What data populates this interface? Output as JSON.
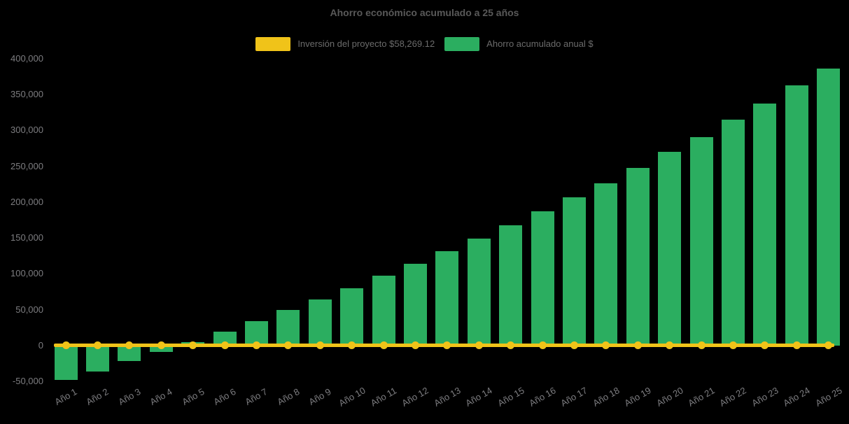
{
  "title": "Ahorro económico acumulado a 25 años",
  "legend": {
    "items": [
      {
        "label": "Inversión del proyecto $58,269.12",
        "swatch_color": "#F0C319",
        "series": "investment-line"
      },
      {
        "label": "Ahorro acumulado anual $",
        "swatch_color": "#2BAE60",
        "series": "savings-bars"
      }
    ]
  },
  "chart_data": {
    "type": "bar",
    "title": "Ahorro económico acumulado a 25 años",
    "categories": [
      "Año 1",
      "Año 2",
      "Año 3",
      "Año 4",
      "Año 5",
      "Año 6",
      "Año 7",
      "Año 8",
      "Año 9",
      "Año 10",
      "Año 11",
      "Año 12",
      "Año 13",
      "Año 14",
      "Año 15",
      "Año 16",
      "Año 17",
      "Año 18",
      "Año 19",
      "Año 20",
      "Año 21",
      "Año 22",
      "Año 23",
      "Año 24",
      "Año 25"
    ],
    "series": [
      {
        "name": "Ahorro acumulado anual $",
        "type": "bar",
        "color": "#2BAE60",
        "values": [
          -48500,
          -36000,
          -22000,
          -9500,
          5000,
          19500,
          33500,
          49500,
          64500,
          80000,
          97500,
          114000,
          131500,
          149500,
          168000,
          187000,
          206500,
          226500,
          248000,
          270000,
          291000,
          315000,
          337500,
          362500,
          386500
        ]
      },
      {
        "name": "Inversión del proyecto $58,269.12",
        "type": "line",
        "color": "#F0C319",
        "marker": "circle",
        "values": [
          0,
          0,
          0,
          0,
          0,
          0,
          0,
          0,
          0,
          0,
          0,
          0,
          0,
          0,
          0,
          0,
          0,
          0,
          0,
          0,
          0,
          0,
          0,
          0,
          0
        ]
      }
    ],
    "xlabel": "",
    "ylabel": "",
    "ylim": [
      -50000,
      400000
    ],
    "yticks": [
      -50000,
      0,
      50000,
      100000,
      150000,
      200000,
      250000,
      300000,
      350000,
      400000
    ],
    "grid": false,
    "legend_position": "top",
    "background": "#000000"
  },
  "colors": {
    "background": "#000000",
    "bar_green": "#2BAE60",
    "line_yellow": "#F0C319",
    "title_text": "#595959",
    "legend_text": "#6B6B6B",
    "axis_text": "#7D7D80"
  }
}
